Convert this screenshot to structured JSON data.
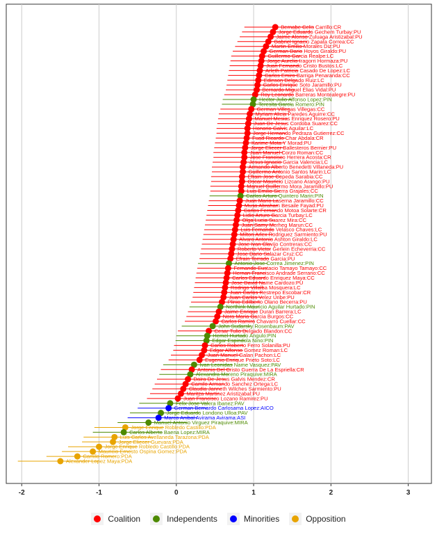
{
  "chart_data": {
    "type": "scatter",
    "orientation": "horizontal",
    "title": "",
    "xlabel": "",
    "ylabel": "",
    "xlim": [
      -2.2,
      3.3
    ],
    "x_ticks": [
      -2,
      -1,
      0,
      1,
      2,
      3
    ],
    "x_tick_labels": [
      "-2",
      "-1",
      "0",
      "1",
      "2",
      "3"
    ],
    "grid": "vertical major lines",
    "legend_position": "bottom",
    "groups": [
      {
        "name": "Coalition",
        "color": "#ff0000"
      },
      {
        "name": "Independents",
        "color": "#4d8a00"
      },
      {
        "name": "Minorities",
        "color": "#0000ff"
      },
      {
        "name": "Opposition",
        "color": "#e8a400"
      }
    ],
    "points": [
      {
        "label": "Bernabe Celis Carrillo:CR",
        "group": "Coalition",
        "x": 1.28,
        "lo": 0.88,
        "hi": 1.78
      },
      {
        "label": "Jorge Eduardo Gechem Turbay:PU",
        "group": "Coalition",
        "x": 1.25,
        "lo": 0.85,
        "hi": 1.75
      },
      {
        "label": "Jaime Alonso Zuluaga Aristizabal:PU",
        "group": "Coalition",
        "x": 1.22,
        "lo": 0.82,
        "hi": 1.72
      },
      {
        "label": "Gabriel Ignacio Zapata Correa:CC",
        "group": "Coalition",
        "x": 1.19,
        "lo": 0.79,
        "hi": 1.69
      },
      {
        "label": "Martin Emilio Morales Diz:PU",
        "group": "Coalition",
        "x": 1.16,
        "lo": 0.76,
        "hi": 1.66
      },
      {
        "label": "German Dario Hoyos Giraldo:PU",
        "group": "Coalition",
        "x": 1.13,
        "lo": 0.73,
        "hi": 1.63
      },
      {
        "label": "Guillermo Garcia Realpe:LC",
        "group": "Coalition",
        "x": 1.11,
        "lo": 0.71,
        "hi": 1.61
      },
      {
        "label": "Jorge Aurelio Iragorri Hormaza:PU",
        "group": "Coalition",
        "x": 1.1,
        "lo": 0.7,
        "hi": 1.6
      },
      {
        "label": "Juan Fernando Cristo Bustos:LC",
        "group": "Coalition",
        "x": 1.09,
        "lo": 0.69,
        "hi": 1.59
      },
      {
        "label": "Arleth Patricia Casado De Lopez:LC",
        "group": "Coalition",
        "x": 1.08,
        "lo": 0.68,
        "hi": 1.58
      },
      {
        "label": "Carlos Emiro Barriga Penaranda:CC",
        "group": "Coalition",
        "x": 1.07,
        "lo": 0.67,
        "hi": 1.57
      },
      {
        "label": "Edinson Delgado Ruiz:LC",
        "group": "Coalition",
        "x": 1.06,
        "lo": 0.66,
        "hi": 1.56
      },
      {
        "label": "Carlos Enrique Soto Jaramillo:PU",
        "group": "Coalition",
        "x": 1.05,
        "lo": 0.65,
        "hi": 1.55
      },
      {
        "label": "Bernardo Miguel Elias Vidal:PU",
        "group": "Coalition",
        "x": 1.04,
        "lo": 0.64,
        "hi": 1.54
      },
      {
        "label": "Roy Leonardo Barreras Montealegre:PU",
        "group": "Coalition",
        "x": 1.02,
        "lo": 0.62,
        "hi": 1.52
      },
      {
        "label": "Hector Julio Alfonso Lopez:PIN",
        "group": "Independents",
        "x": 1.0,
        "lo": 0.6,
        "hi": 1.5
      },
      {
        "label": "Teresita Garcia Romero:PIN",
        "group": "Independents",
        "x": 0.99,
        "lo": 0.59,
        "hi": 1.49
      },
      {
        "label": "German Villegas Villegas:CC",
        "group": "Coalition",
        "x": 0.97,
        "lo": 0.57,
        "hi": 1.47
      },
      {
        "label": "Myriam Alicia Paredes Aguirre:CC",
        "group": "Coalition",
        "x": 0.95,
        "lo": 0.55,
        "hi": 1.45
      },
      {
        "label": "Manuel Mesias Enriquez Rosero:PU",
        "group": "Coalition",
        "x": 0.94,
        "lo": 0.54,
        "hi": 1.44
      },
      {
        "label": "Juan De Jesus Cordoba Suarez:CC",
        "group": "Coalition",
        "x": 0.93,
        "lo": 0.53,
        "hi": 1.43
      },
      {
        "label": "Honorio Galvis Aguilar:LC",
        "group": "Coalition",
        "x": 0.92,
        "lo": 0.52,
        "hi": 1.42
      },
      {
        "label": "Jorge Hernando Pedraza Gutierrez:CC",
        "group": "Coalition",
        "x": 0.92,
        "lo": 0.52,
        "hi": 1.42
      },
      {
        "label": "Fuad Ricardo Char Abdala:CR",
        "group": "Coalition",
        "x": 0.91,
        "lo": 0.51,
        "hi": 1.41
      },
      {
        "label": "Karime Mota Y Morad:PU",
        "group": "Coalition",
        "x": 0.9,
        "lo": 0.5,
        "hi": 1.4
      },
      {
        "label": "Jorge Eliecer Ballesteros Bernier:PU",
        "group": "Coalition",
        "x": 0.89,
        "lo": 0.49,
        "hi": 1.39
      },
      {
        "label": "Juan Manuel Corzo Roman:CC",
        "group": "Coalition",
        "x": 0.88,
        "lo": 0.48,
        "hi": 1.38
      },
      {
        "label": "Jose Francisco Herrera Acosta:CR",
        "group": "Coalition",
        "x": 0.88,
        "lo": 0.48,
        "hi": 1.38
      },
      {
        "label": "Jesus Ignacio Garcia Valencia:LC",
        "group": "Coalition",
        "x": 0.87,
        "lo": 0.47,
        "hi": 1.37
      },
      {
        "label": "Armando Alberto Benedetti Villaneda:PU",
        "group": "Coalition",
        "x": 0.86,
        "lo": 0.46,
        "hi": 1.36
      },
      {
        "label": "Guillermo Antonio Santos Marin:LC",
        "group": "Coalition",
        "x": 0.86,
        "lo": 0.46,
        "hi": 1.36
      },
      {
        "label": "Efrain Jose Cepeda Sarabia:CC",
        "group": "Coalition",
        "x": 0.85,
        "lo": 0.45,
        "hi": 1.35
      },
      {
        "label": "Oscar Mauricio Lizcano Arango:PU",
        "group": "Coalition",
        "x": 0.85,
        "lo": 0.45,
        "hi": 1.35
      },
      {
        "label": "Manuel Guillermo Mora Jaramillo:PU",
        "group": "Coalition",
        "x": 0.84,
        "lo": 0.44,
        "hi": 1.34
      },
      {
        "label": "Luis Emilio Sierra Grajales:CC",
        "group": "Coalition",
        "x": 0.84,
        "lo": 0.44,
        "hi": 1.34
      },
      {
        "label": "Carlos Arturo Quintero Marin:PIN",
        "group": "Independents",
        "x": 0.83,
        "lo": 0.43,
        "hi": 1.33
      },
      {
        "label": "Juan Mario Laserna Jaramillo:CC",
        "group": "Coalition",
        "x": 0.82,
        "lo": 0.42,
        "hi": 1.32
      },
      {
        "label": "Musa Abraham Besaile Fayad:PU",
        "group": "Coalition",
        "x": 0.81,
        "lo": 0.41,
        "hi": 1.31
      },
      {
        "label": "Carlos Fernando Motoa Solarte:CR",
        "group": "Coalition",
        "x": 0.8,
        "lo": 0.4,
        "hi": 1.3
      },
      {
        "label": "Lidio Arturo Garcia Turbay:LC",
        "group": "Coalition",
        "x": 0.79,
        "lo": 0.39,
        "hi": 1.29
      },
      {
        "label": "Olga Lucia Suarez Mira:CC",
        "group": "Coalition",
        "x": 0.78,
        "lo": 0.38,
        "hi": 1.28
      },
      {
        "label": "Juan Samy Merheg Marun:CC",
        "group": "Coalition",
        "x": 0.77,
        "lo": 0.37,
        "hi": 1.27
      },
      {
        "label": "Luis Fernando Velasco Chaves:LC",
        "group": "Coalition",
        "x": 0.76,
        "lo": 0.36,
        "hi": 1.26
      },
      {
        "label": "Milton Arlex Rodriguez Sarmiento:PU",
        "group": "Coalition",
        "x": 0.75,
        "lo": 0.35,
        "hi": 1.25
      },
      {
        "label": "Alvaro Antonio Ashton Giraldo:LC",
        "group": "Coalition",
        "x": 0.74,
        "lo": 0.34,
        "hi": 1.24
      },
      {
        "label": "Jose Ivan Clavijo Contreras:CC",
        "group": "Coalition",
        "x": 0.73,
        "lo": 0.33,
        "hi": 1.23
      },
      {
        "label": "Roberto Victor Gerlein Echeverria:CC",
        "group": "Coalition",
        "x": 0.72,
        "lo": 0.32,
        "hi": 1.22
      },
      {
        "label": "Jose Dario Salazar Cruz:CC",
        "group": "Coalition",
        "x": 0.71,
        "lo": 0.31,
        "hi": 1.21
      },
      {
        "label": "Efrain Torrado Garcia:PU",
        "group": "Coalition",
        "x": 0.7,
        "lo": 0.3,
        "hi": 1.2
      },
      {
        "label": "Antonio Jose Correa Jimenez:PIN",
        "group": "Independents",
        "x": 0.68,
        "lo": 0.28,
        "hi": 1.18
      },
      {
        "label": "Fernando Eustacio Tamayo Tamayo:CC",
        "group": "Coalition",
        "x": 0.67,
        "lo": 0.27,
        "hi": 1.17
      },
      {
        "label": "Hernan Francisco Andrade Serrano:CC",
        "group": "Coalition",
        "x": 0.66,
        "lo": 0.26,
        "hi": 1.16
      },
      {
        "label": "Carlos Eduardo Enriquez Maya:CC",
        "group": "Coalition",
        "x": 0.65,
        "lo": 0.25,
        "hi": 1.15
      },
      {
        "label": "Jose David Name Cardozo:PU",
        "group": "Coalition",
        "x": 0.64,
        "lo": 0.24,
        "hi": 1.14
      },
      {
        "label": "Rodrigo Villalba Mosquera:LC",
        "group": "Coalition",
        "x": 0.63,
        "lo": 0.23,
        "hi": 1.13
      },
      {
        "label": "Juan Carlos Restrepo Escobar:CR",
        "group": "Coalition",
        "x": 0.62,
        "lo": 0.22,
        "hi": 1.12
      },
      {
        "label": "Juan Carlos Velez Uribe:PU",
        "group": "Coalition",
        "x": 0.61,
        "lo": 0.21,
        "hi": 1.11
      },
      {
        "label": "Plinio Edilberto Olano Becerra:PU",
        "group": "Coalition",
        "x": 0.59,
        "lo": 0.19,
        "hi": 1.09
      },
      {
        "label": "Nerthink Mauricio Aguilar Hurtado:PIN",
        "group": "Independents",
        "x": 0.57,
        "lo": 0.17,
        "hi": 1.07
      },
      {
        "label": "Jaime Enrique Duran Barrera:LC",
        "group": "Coalition",
        "x": 0.55,
        "lo": 0.15,
        "hi": 1.05
      },
      {
        "label": "Nora Maria Garcia Burgos:CC",
        "group": "Coalition",
        "x": 0.53,
        "lo": 0.13,
        "hi": 1.03
      },
      {
        "label": "Carlos Ramiro Chavarro Cuellar:CC",
        "group": "Coalition",
        "x": 0.51,
        "lo": 0.11,
        "hi": 1.01
      },
      {
        "label": "John Sudarsky Rosenbaum:PAV",
        "group": "Independents",
        "x": 0.47,
        "lo": 0.07,
        "hi": 0.97
      },
      {
        "label": "Cesar Tulio Delgado Blandon:CC",
        "group": "Coalition",
        "x": 0.42,
        "lo": 0.02,
        "hi": 0.92
      },
      {
        "label": "Hemel Hurtado Angulo:PIN",
        "group": "Independents",
        "x": 0.4,
        "lo": 0.0,
        "hi": 0.9
      },
      {
        "label": "Edgar Espindola Nino:PIN",
        "group": "Independents",
        "x": 0.39,
        "lo": -0.01,
        "hi": 0.89
      },
      {
        "label": "Carlos Roberto Ferro Solanilla:PU",
        "group": "Coalition",
        "x": 0.37,
        "lo": -0.03,
        "hi": 0.87
      },
      {
        "label": "Edgar Alfonso Gomez Roman:LC",
        "group": "Coalition",
        "x": 0.36,
        "lo": -0.04,
        "hi": 0.86
      },
      {
        "label": "Juan Manuel Galan Pachon:LC",
        "group": "Coalition",
        "x": 0.33,
        "lo": -0.07,
        "hi": 0.83
      },
      {
        "label": "Eugenio Enrique Prieto Soto:LC",
        "group": "Coalition",
        "x": 0.3,
        "lo": -0.1,
        "hi": 0.8
      },
      {
        "label": "Ivan Leonidas Name Vasquez:PAV",
        "group": "Independents",
        "x": 0.23,
        "lo": -0.17,
        "hi": 0.73
      },
      {
        "label": "Antonio Del Cristo Guerra De La Espriella:CR",
        "group": "Coalition",
        "x": 0.2,
        "lo": -0.2,
        "hi": 0.7
      },
      {
        "label": "Alexandra Moreno Piraquive:MIRA",
        "group": "Independents",
        "x": 0.18,
        "lo": -0.22,
        "hi": 0.68
      },
      {
        "label": "Daira De Jesus Galvis Mendez:CR",
        "group": "Coalition",
        "x": 0.15,
        "lo": -0.25,
        "hi": 0.65
      },
      {
        "label": "Camilo Armando Sanchez Ortega:LC",
        "group": "Coalition",
        "x": 0.12,
        "lo": -0.28,
        "hi": 0.62
      },
      {
        "label": "Claudia Janneth Wilches Sarmiento:PU",
        "group": "Coalition",
        "x": 0.09,
        "lo": -0.31,
        "hi": 0.59
      },
      {
        "label": "Maritza Martinez Aristizabal:PU",
        "group": "Coalition",
        "x": 0.06,
        "lo": -0.34,
        "hi": 0.56
      },
      {
        "label": "Juan Francisco Lozano Ramirez:PU",
        "group": "Coalition",
        "x": 0.02,
        "lo": -0.38,
        "hi": 0.52
      },
      {
        "label": "Felix Jose Valera Ibanez:PAV",
        "group": "Independents",
        "x": -0.08,
        "lo": -0.48,
        "hi": 0.42
      },
      {
        "label": "German Bernardo Carlosama Lopez:AICO",
        "group": "Minorities",
        "x": -0.1,
        "lo": -0.5,
        "hi": 0.4
      },
      {
        "label": "Jorge Eduardo Londono Ulloa:PAV",
        "group": "Independents",
        "x": -0.2,
        "lo": -0.6,
        "hi": 0.3
      },
      {
        "label": "Marco Anibal Avirama Avirama:ASI",
        "group": "Minorities",
        "x": -0.23,
        "lo": -0.63,
        "hi": 0.27
      },
      {
        "label": "Manuel Antonio Virguez Piraquive:MIRA",
        "group": "Independents",
        "x": -0.36,
        "lo": -0.76,
        "hi": 0.14
      },
      {
        "label": "Jorge Enrique Robledo Castillo:PDA",
        "group": "Opposition",
        "x": -0.66,
        "lo": -1.06,
        "hi": -0.16
      },
      {
        "label": "Carlos Alberto Baena Lopez:MIRA",
        "group": "Independents",
        "x": -0.68,
        "lo": -1.08,
        "hi": -0.18
      },
      {
        "label": "Luis Carlos Avellaneda Tarazona:PDA",
        "group": "Opposition",
        "x": -0.8,
        "lo": -1.2,
        "hi": -0.3
      },
      {
        "label": "Jorge Eliecer Guevara:PDA",
        "group": "Opposition",
        "x": -0.82,
        "lo": -1.22,
        "hi": -0.32
      },
      {
        "label": "Jorge Enrique Robledo Castillo:PDA",
        "group": "Opposition",
        "x": -1.0,
        "lo": -1.4,
        "hi": -0.5
      },
      {
        "label": "Mauricio Ernesto Ospina Gomez:PDA",
        "group": "Opposition",
        "x": -1.08,
        "lo": -1.48,
        "hi": -0.58
      },
      {
        "label": "Camilo Romero:PDA",
        "group": "Opposition",
        "x": -1.28,
        "lo": -1.68,
        "hi": -0.78
      },
      {
        "label": "Alexander Lopez Maya:PDA",
        "group": "Opposition",
        "x": -1.5,
        "lo": -2.05,
        "hi": -1.0
      }
    ]
  }
}
